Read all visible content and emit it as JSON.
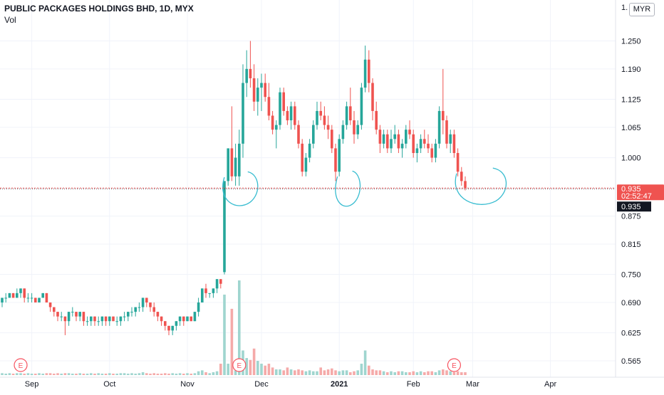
{
  "header": {
    "title": "PUBLIC PACKAGES HOLDINGS BHD, 1D, MYX",
    "indicator": "Vol",
    "currency": "MYR",
    "axis_top_label": "1."
  },
  "price_tag": {
    "price": "0.935",
    "countdown": "02:52:47"
  },
  "crosshair_tag": {
    "price": "0.935"
  },
  "earnings_marker": "E",
  "colors": {
    "up": "#26a69a",
    "down": "#ef5350",
    "vol_up": "#9fd5cf",
    "vol_down": "#f5aaa9",
    "annotation": "#37bcd0",
    "price_line": "#ef5350"
  },
  "chart_data": {
    "type": "candlestick",
    "title": "PUBLIC PACKAGES HOLDINGS BHD, 1D, MYX",
    "currency": "MYR",
    "y_ticks": [
      "1.250",
      "1.190",
      "1.125",
      "1.065",
      "1.000",
      "0.935",
      "0.875",
      "0.815",
      "0.750",
      "0.690",
      "0.625",
      "0.565"
    ],
    "x_ticks": [
      "Sep",
      "Oct",
      "Nov",
      "Dec",
      "2021",
      "Feb",
      "Mar",
      "Apr"
    ],
    "ylim": [
      0.53,
      1.33
    ],
    "last_price": 0.935,
    "earnings_events": [
      "Aug",
      "Nov",
      "Feb"
    ],
    "candles": [
      [
        0.69,
        0.7,
        0.68,
        0.7
      ],
      [
        0.7,
        0.71,
        0.69,
        0.7
      ],
      [
        0.7,
        0.71,
        0.7,
        0.71
      ],
      [
        0.71,
        0.71,
        0.7,
        0.7
      ],
      [
        0.7,
        0.72,
        0.7,
        0.71
      ],
      [
        0.71,
        0.72,
        0.7,
        0.72
      ],
      [
        0.72,
        0.72,
        0.69,
        0.7
      ],
      [
        0.7,
        0.71,
        0.69,
        0.7
      ],
      [
        0.7,
        0.71,
        0.69,
        0.7
      ],
      [
        0.7,
        0.7,
        0.69,
        0.69
      ],
      [
        0.69,
        0.7,
        0.69,
        0.7
      ],
      [
        0.7,
        0.71,
        0.7,
        0.71
      ],
      [
        0.71,
        0.71,
        0.69,
        0.69
      ],
      [
        0.69,
        0.69,
        0.67,
        0.68
      ],
      [
        0.68,
        0.68,
        0.66,
        0.67
      ],
      [
        0.67,
        0.67,
        0.65,
        0.66
      ],
      [
        0.66,
        0.67,
        0.65,
        0.66
      ],
      [
        0.66,
        0.66,
        0.62,
        0.65
      ],
      [
        0.65,
        0.67,
        0.64,
        0.67
      ],
      [
        0.67,
        0.68,
        0.66,
        0.67
      ],
      [
        0.67,
        0.67,
        0.65,
        0.66
      ],
      [
        0.66,
        0.67,
        0.65,
        0.67
      ],
      [
        0.67,
        0.67,
        0.64,
        0.65
      ],
      [
        0.65,
        0.66,
        0.64,
        0.65
      ],
      [
        0.65,
        0.66,
        0.64,
        0.66
      ],
      [
        0.66,
        0.66,
        0.64,
        0.65
      ],
      [
        0.65,
        0.66,
        0.64,
        0.65
      ],
      [
        0.65,
        0.66,
        0.64,
        0.66
      ],
      [
        0.66,
        0.66,
        0.64,
        0.65
      ],
      [
        0.65,
        0.66,
        0.64,
        0.66
      ],
      [
        0.66,
        0.66,
        0.65,
        0.65
      ],
      [
        0.65,
        0.66,
        0.64,
        0.65
      ],
      [
        0.65,
        0.66,
        0.64,
        0.66
      ],
      [
        0.66,
        0.67,
        0.65,
        0.66
      ],
      [
        0.66,
        0.67,
        0.65,
        0.67
      ],
      [
        0.67,
        0.68,
        0.66,
        0.67
      ],
      [
        0.67,
        0.68,
        0.66,
        0.68
      ],
      [
        0.68,
        0.69,
        0.67,
        0.68
      ],
      [
        0.68,
        0.7,
        0.67,
        0.7
      ],
      [
        0.7,
        0.7,
        0.68,
        0.69
      ],
      [
        0.69,
        0.69,
        0.67,
        0.68
      ],
      [
        0.68,
        0.69,
        0.66,
        0.67
      ],
      [
        0.67,
        0.67,
        0.65,
        0.66
      ],
      [
        0.66,
        0.66,
        0.64,
        0.65
      ],
      [
        0.65,
        0.65,
        0.63,
        0.64
      ],
      [
        0.64,
        0.64,
        0.62,
        0.63
      ],
      [
        0.63,
        0.64,
        0.62,
        0.64
      ],
      [
        0.64,
        0.65,
        0.63,
        0.65
      ],
      [
        0.65,
        0.66,
        0.64,
        0.66
      ],
      [
        0.66,
        0.66,
        0.64,
        0.65
      ],
      [
        0.65,
        0.66,
        0.65,
        0.66
      ],
      [
        0.66,
        0.66,
        0.65,
        0.65
      ],
      [
        0.65,
        0.67,
        0.65,
        0.67
      ],
      [
        0.67,
        0.7,
        0.66,
        0.69
      ],
      [
        0.69,
        0.72,
        0.69,
        0.72
      ],
      [
        0.72,
        0.73,
        0.7,
        0.71
      ],
      [
        0.71,
        0.71,
        0.7,
        0.71
      ],
      [
        0.71,
        0.72,
        0.7,
        0.72
      ],
      [
        0.72,
        0.74,
        0.71,
        0.74
      ],
      [
        0.74,
        0.74,
        0.72,
        0.73
      ],
      [
        0.755,
        0.95,
        0.75,
        0.95
      ],
      [
        0.95,
        1.02,
        0.94,
        1.02
      ],
      [
        1.02,
        1.11,
        0.95,
        0.96
      ],
      [
        0.96,
        1.03,
        0.94,
        1.0
      ],
      [
        0.96,
        1.06,
        0.94,
        1.03
      ],
      [
        1.03,
        1.2,
        1.0,
        1.16
      ],
      [
        1.16,
        1.23,
        1.13,
        1.19
      ],
      [
        1.19,
        1.25,
        1.15,
        1.17
      ],
      [
        1.17,
        1.2,
        1.1,
        1.12
      ],
      [
        1.12,
        1.17,
        1.09,
        1.15
      ],
      [
        1.15,
        1.18,
        1.1,
        1.16
      ],
      [
        1.16,
        1.18,
        1.12,
        1.13
      ],
      [
        1.13,
        1.16,
        1.08,
        1.09
      ],
      [
        1.09,
        1.1,
        1.05,
        1.06
      ],
      [
        1.06,
        1.08,
        1.02,
        1.07
      ],
      [
        1.07,
        1.15,
        1.06,
        1.14
      ],
      [
        1.14,
        1.15,
        1.09,
        1.1
      ],
      [
        1.1,
        1.11,
        1.07,
        1.08
      ],
      [
        1.08,
        1.12,
        1.06,
        1.11
      ],
      [
        1.11,
        1.12,
        1.06,
        1.07
      ],
      [
        1.07,
        1.08,
        1.02,
        1.03
      ],
      [
        1.03,
        1.04,
        0.96,
        0.97
      ],
      [
        0.97,
        1.01,
        0.96,
        1.0
      ],
      [
        1.0,
        1.04,
        0.99,
        1.03
      ],
      [
        1.03,
        1.08,
        1.02,
        1.07
      ],
      [
        1.07,
        1.12,
        1.06,
        1.1
      ],
      [
        1.1,
        1.12,
        1.08,
        1.09
      ],
      [
        1.09,
        1.11,
        1.06,
        1.07
      ],
      [
        1.07,
        1.09,
        1.04,
        1.06
      ],
      [
        1.06,
        1.07,
        1.01,
        1.02
      ],
      [
        1.02,
        1.03,
        0.95,
        0.97
      ],
      [
        0.97,
        1.05,
        0.96,
        1.04
      ],
      [
        1.04,
        1.08,
        1.03,
        1.07
      ],
      [
        1.07,
        1.12,
        1.06,
        1.11
      ],
      [
        1.11,
        1.15,
        1.07,
        1.08
      ],
      [
        1.08,
        1.1,
        1.03,
        1.05
      ],
      [
        1.05,
        1.08,
        1.04,
        1.07
      ],
      [
        1.07,
        1.16,
        1.06,
        1.15
      ],
      [
        1.15,
        1.24,
        1.14,
        1.21
      ],
      [
        1.21,
        1.23,
        1.14,
        1.16
      ],
      [
        1.16,
        1.17,
        1.08,
        1.1
      ],
      [
        1.1,
        1.12,
        1.05,
        1.06
      ],
      [
        1.06,
        1.07,
        1.01,
        1.03
      ],
      [
        1.03,
        1.06,
        1.02,
        1.05
      ],
      [
        1.05,
        1.06,
        1.01,
        1.02
      ],
      [
        1.02,
        1.06,
        1.01,
        1.04
      ],
      [
        1.04,
        1.07,
        1.03,
        1.05
      ],
      [
        1.05,
        1.06,
        1.01,
        1.02
      ],
      [
        1.02,
        1.04,
        1.0,
        1.03
      ],
      [
        1.03,
        1.07,
        1.02,
        1.06
      ],
      [
        1.06,
        1.08,
        1.04,
        1.05
      ],
      [
        1.05,
        1.06,
        1.0,
        1.01
      ],
      [
        1.01,
        1.03,
        0.99,
        1.02
      ],
      [
        1.02,
        1.05,
        1.01,
        1.04
      ],
      [
        1.04,
        1.06,
        1.02,
        1.03
      ],
      [
        1.03,
        1.05,
        1.01,
        1.02
      ],
      [
        1.02,
        1.03,
        0.99,
        1.0
      ],
      [
        1.0,
        1.04,
        0.99,
        1.03
      ],
      [
        1.03,
        1.11,
        1.02,
        1.1
      ],
      [
        1.1,
        1.19,
        1.05,
        1.08
      ],
      [
        1.08,
        1.09,
        1.02,
        1.03
      ],
      [
        1.03,
        1.06,
        1.01,
        1.05
      ],
      [
        1.05,
        1.06,
        1.0,
        1.01
      ],
      [
        1.01,
        1.02,
        0.96,
        0.97
      ],
      [
        0.97,
        0.98,
        0.94,
        0.95
      ],
      [
        0.95,
        0.96,
        0.93,
        0.935
      ]
    ],
    "volumes": [
      0.02,
      0.015,
      0.02,
      0.015,
      0.02,
      0.02,
      0.015,
      0.02,
      0.015,
      0.015,
      0.02,
      0.015,
      0.02,
      0.02,
      0.015,
      0.02,
      0.015,
      0.02,
      0.02,
      0.015,
      0.015,
      0.02,
      0.015,
      0.015,
      0.02,
      0.015,
      0.02,
      0.015,
      0.015,
      0.02,
      0.015,
      0.015,
      0.02,
      0.02,
      0.015,
      0.02,
      0.015,
      0.02,
      0.03,
      0.02,
      0.015,
      0.02,
      0.015,
      0.015,
      0.02,
      0.015,
      0.02,
      0.015,
      0.02,
      0.015,
      0.02,
      0.015,
      0.02,
      0.04,
      0.05,
      0.03,
      0.02,
      0.03,
      0.04,
      0.12,
      0.85,
      0.12,
      0.7,
      0.05,
      1.0,
      0.26,
      0.18,
      0.16,
      0.28,
      0.15,
      0.12,
      0.1,
      0.12,
      0.08,
      0.06,
      0.06,
      0.05,
      0.08,
      0.06,
      0.05,
      0.06,
      0.05,
      0.04,
      0.05,
      0.04,
      0.04,
      0.08,
      0.05,
      0.06,
      0.07,
      0.05,
      0.04,
      0.05,
      0.05,
      0.03,
      0.04,
      0.05,
      0.12,
      0.26,
      0.1,
      0.06,
      0.05,
      0.05,
      0.04,
      0.03,
      0.04,
      0.03,
      0.04,
      0.04,
      0.03,
      0.03,
      0.04,
      0.03,
      0.04,
      0.03,
      0.04,
      0.04,
      0.03,
      0.05,
      0.06,
      0.05,
      0.04,
      0.03,
      0.04,
      0.03,
      0.03
    ]
  }
}
